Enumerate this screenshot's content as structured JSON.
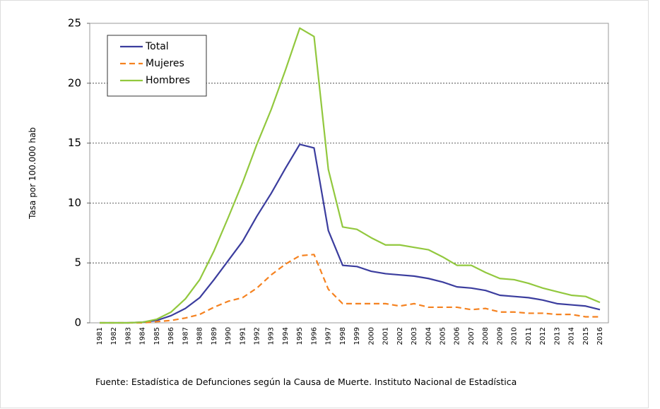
{
  "chart_data": {
    "type": "line",
    "ylabel": "Tasa por 100.000 hab",
    "source": "Fuente: Estadística de Defunciones según la Causa de Muerte. Instituto Nacional de Estadística",
    "categories": [
      "1981",
      "1982",
      "1983",
      "1984",
      "1985",
      "1986",
      "1987",
      "1988",
      "1989",
      "1990",
      "1991",
      "1992",
      "1993",
      "1994",
      "1995",
      "1996",
      "1997",
      "1998",
      "1999",
      "2000",
      "2001",
      "2002",
      "2003",
      "2004",
      "2005",
      "2006",
      "2007",
      "2008",
      "2009",
      "2010",
      "2011",
      "2012",
      "2013",
      "2014",
      "2015",
      "2016"
    ],
    "series": [
      {
        "name": "Total",
        "color": "#3b3d9e",
        "dashed": false,
        "values": [
          0,
          0,
          0,
          0.05,
          0.2,
          0.6,
          1.2,
          2.1,
          3.6,
          5.2,
          6.8,
          8.9,
          10.8,
          12.9,
          14.9,
          14.6,
          7.7,
          4.8,
          4.7,
          4.3,
          4.1,
          4.0,
          3.9,
          3.7,
          3.4,
          3.0,
          2.9,
          2.7,
          2.3,
          2.2,
          2.1,
          1.9,
          1.6,
          1.5,
          1.4,
          1.1
        ]
      },
      {
        "name": "Mujeres",
        "color": "#f58220",
        "dashed": true,
        "values": [
          0,
          0,
          0,
          0,
          0.1,
          0.2,
          0.4,
          0.7,
          1.3,
          1.8,
          2.1,
          2.9,
          4.0,
          4.9,
          5.6,
          5.7,
          2.8,
          1.6,
          1.6,
          1.6,
          1.6,
          1.4,
          1.6,
          1.3,
          1.3,
          1.3,
          1.1,
          1.2,
          0.9,
          0.9,
          0.8,
          0.8,
          0.7,
          0.7,
          0.5,
          0.5
        ]
      },
      {
        "name": "Hombres",
        "color": "#92c83e",
        "dashed": false,
        "values": [
          0,
          0,
          0,
          0.05,
          0.3,
          0.9,
          2.0,
          3.6,
          6.0,
          8.8,
          11.7,
          14.9,
          17.8,
          21.1,
          24.6,
          23.9,
          12.8,
          8.0,
          7.8,
          7.1,
          6.5,
          6.5,
          6.3,
          6.1,
          5.5,
          4.8,
          4.8,
          4.2,
          3.7,
          3.6,
          3.3,
          2.9,
          2.6,
          2.3,
          2.2,
          1.7
        ]
      }
    ],
    "ylim": [
      0,
      25
    ],
    "yticks": [
      0,
      5,
      10,
      15,
      20,
      25
    ],
    "grid": true,
    "legend": "top-left"
  }
}
